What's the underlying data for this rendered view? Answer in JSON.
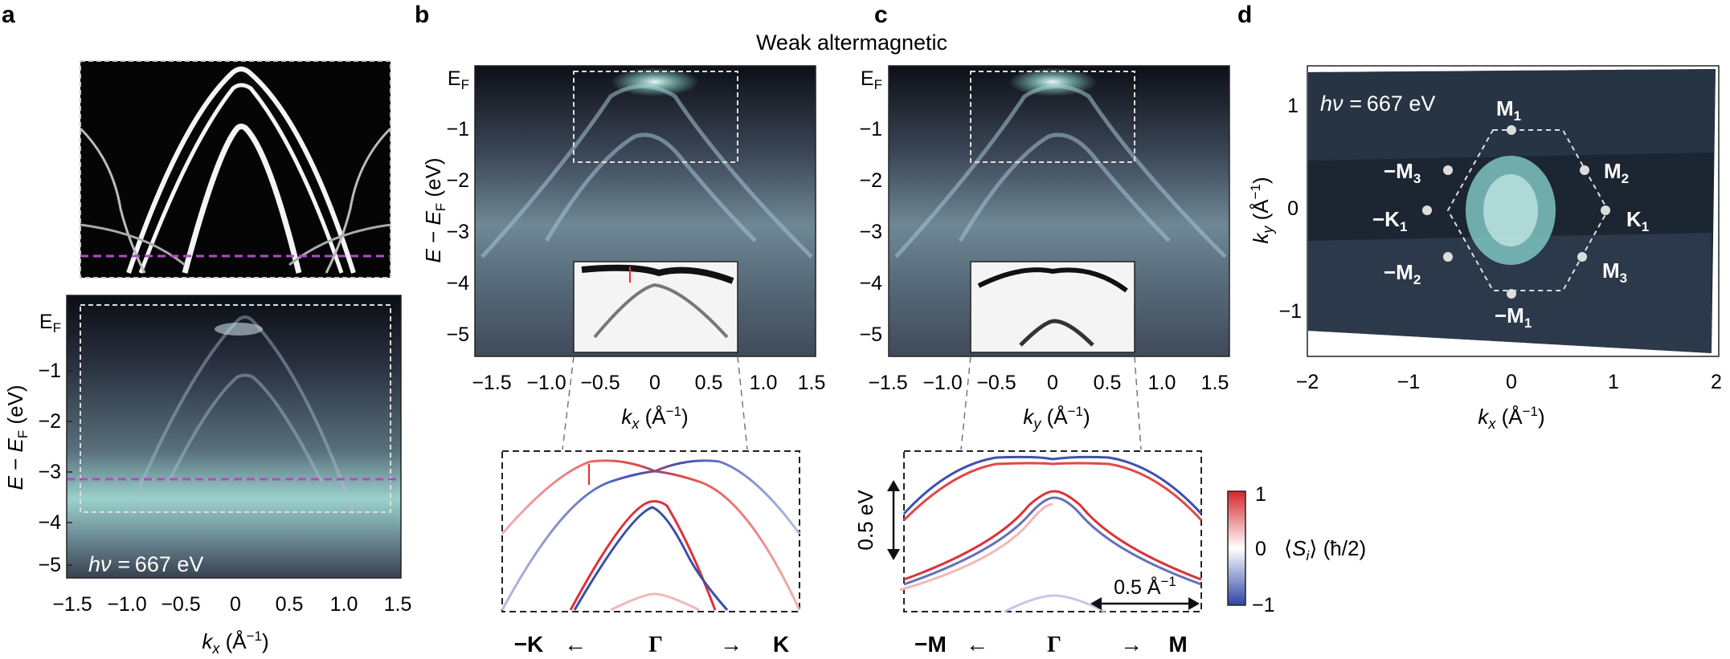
{
  "figure": {
    "title": "Weak altermagnetic",
    "panel_letters": [
      "a",
      "b",
      "c",
      "d"
    ],
    "photon_energy": "667 eV",
    "photon_prefix": "hν ="
  },
  "panel_a": {
    "y_ticks": [
      "E_F",
      "−1",
      "−2",
      "−3",
      "−4",
      "−5"
    ],
    "x_ticks": [
      "−1.5",
      "−1.0",
      "−0.5",
      "0",
      "0.5",
      "1.0",
      "1.5"
    ],
    "x_label": "k_x (Å^−1)",
    "y_label": "E − E_F (eV)"
  },
  "panel_b": {
    "y_ticks": [
      "E_F",
      "−1",
      "−2",
      "−3",
      "−4",
      "−5"
    ],
    "x_ticks": [
      "−1.5",
      "−1.0",
      "−0.5",
      "0",
      "0.5",
      "1.0",
      "1.5"
    ],
    "x_label": "k_x (Å^−1)",
    "y_label": "E − E_F (eV)",
    "bottom_labels": [
      "−K",
      "←",
      "Γ",
      "→",
      "K"
    ]
  },
  "panel_c": {
    "y_ticks": [
      "E_F",
      "−1",
      "−2",
      "−3",
      "−4",
      "−5"
    ],
    "x_ticks": [
      "−1.5",
      "−1.0",
      "−0.5",
      "0",
      "0.5",
      "1.0",
      "1.5"
    ],
    "x_label": "k_y (Å^−1)",
    "energy_scale": "0.5 eV",
    "momentum_scale": "0.5 Å^−1",
    "bottom_labels": [
      "−M",
      "←",
      "Γ",
      "→",
      "M"
    ]
  },
  "colorbar": {
    "ticks": [
      "1",
      "0",
      "−1"
    ],
    "label": "⟨S_i⟩ (ħ/2)"
  },
  "panel_d": {
    "x_ticks": [
      "−2",
      "−1",
      "0",
      "1",
      "2"
    ],
    "y_ticks": [
      "1",
      "0",
      "−1"
    ],
    "x_label": "k_x (Å^−1)",
    "y_label": "k_y (Å^−1)",
    "points": [
      "M1",
      "M2",
      "K1",
      "M3",
      "−M1",
      "−M2",
      "−K1",
      "−M3"
    ]
  }
}
